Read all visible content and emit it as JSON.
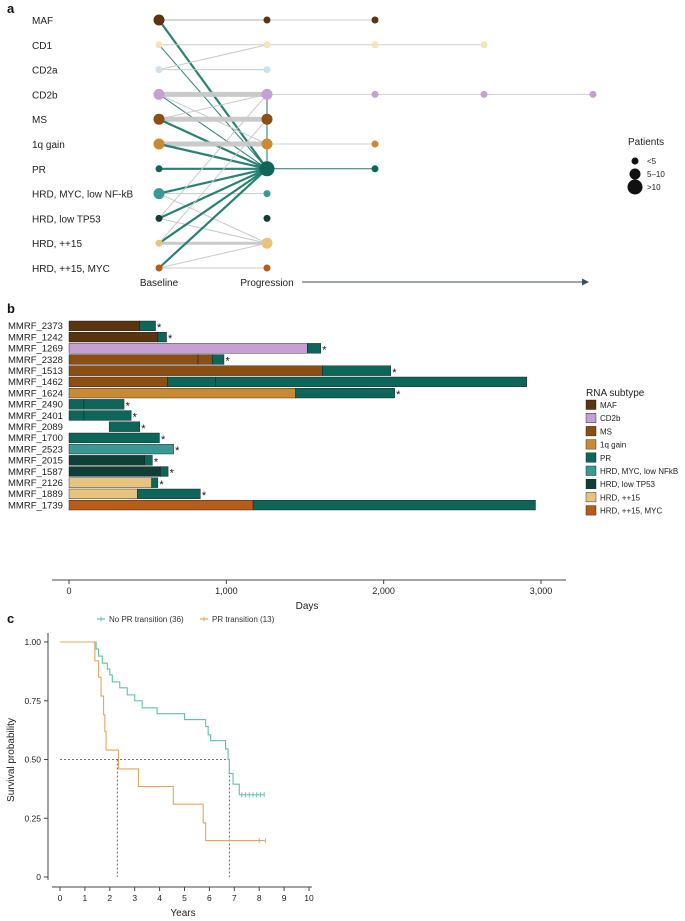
{
  "panels": {
    "a": "a",
    "b": "b",
    "c": "c"
  },
  "chart_data": [
    {
      "type": "network",
      "panel": "a",
      "rows": [
        "MAF",
        "CD1",
        "CD2a",
        "CD2b",
        "MS",
        "1q gain",
        "PR",
        "HRD, MYC, low NF-kB",
        "HRD, low TP53",
        "HRD, ++15",
        "HRD, ++15, MYC"
      ],
      "row_colors": [
        "#5b3410",
        "#f8e2b8",
        "#cfe0ef",
        "#c6a0d4",
        "#8c4f13",
        "#c98a35",
        "#0d6659",
        "#3a9a93",
        "#0f3f37",
        "#e6c47f",
        "#b85c1a"
      ],
      "stages": [
        "Baseline",
        "Progression"
      ],
      "baseline_sizes": [
        2,
        1,
        1,
        2,
        2,
        2,
        1,
        2,
        1,
        1,
        1
      ],
      "progression_sizes": [
        1,
        1,
        1,
        2,
        2,
        2,
        3,
        1,
        1,
        2,
        1
      ],
      "later_nodes": [
        {
          "row": 0,
          "step": 1
        },
        {
          "row": 1,
          "step": 1
        },
        {
          "row": 1,
          "step": 2
        },
        {
          "row": 3,
          "step": 1
        },
        {
          "row": 3,
          "step": 2
        },
        {
          "row": 3,
          "step": 3
        },
        {
          "row": 5,
          "step": 1
        },
        {
          "row": 6,
          "step": 1
        }
      ],
      "transitions": [
        {
          "from": 0,
          "to": 0,
          "w": 2
        },
        {
          "from": 0,
          "to": 6,
          "w": 2
        },
        {
          "from": 1,
          "to": 1,
          "w": 1
        },
        {
          "from": 1,
          "to": 6,
          "w": 1
        },
        {
          "from": 2,
          "to": 1,
          "w": 1
        },
        {
          "from": 2,
          "to": 2,
          "w": 1
        },
        {
          "from": 3,
          "to": 3,
          "w": 4
        },
        {
          "from": 3,
          "to": 6,
          "w": 1
        },
        {
          "from": 3,
          "to": 5,
          "w": 1
        },
        {
          "from": 4,
          "to": 4,
          "w": 4
        },
        {
          "from": 4,
          "to": 6,
          "w": 2
        },
        {
          "from": 4,
          "to": 3,
          "w": 1
        },
        {
          "from": 5,
          "to": 5,
          "w": 4
        },
        {
          "from": 5,
          "to": 6,
          "w": 2
        },
        {
          "from": 6,
          "to": 6,
          "w": 2
        },
        {
          "from": 7,
          "to": 6,
          "w": 2
        },
        {
          "from": 7,
          "to": 7,
          "w": 1
        },
        {
          "from": 7,
          "to": 9,
          "w": 1
        },
        {
          "from": 8,
          "to": 6,
          "w": 2
        },
        {
          "from": 8,
          "to": 9,
          "w": 1
        },
        {
          "from": 9,
          "to": 9,
          "w": 3
        },
        {
          "from": 9,
          "to": 6,
          "w": 2
        },
        {
          "from": 10,
          "to": 6,
          "w": 2
        },
        {
          "from": 10,
          "to": 9,
          "w": 1
        },
        {
          "from": 10,
          "to": 10,
          "w": 1
        },
        {
          "from": 8,
          "to": 3,
          "w": 1
        },
        {
          "from": 9,
          "to": 4,
          "w": 1
        }
      ],
      "later_transitions": [
        {
          "row": 0,
          "from_step": 0,
          "to_step": 1
        },
        {
          "row": 1,
          "from_step": 0,
          "to_step": 2
        },
        {
          "row": 3,
          "from_step": 0,
          "to_step": 3
        },
        {
          "row": 5,
          "from_step": 0,
          "to_step": 1
        },
        {
          "row": 6,
          "from_step": 0,
          "to_step": 1
        },
        {
          "row": 6,
          "from_step": 0,
          "to_step": 1,
          "to_row": 4
        },
        {
          "row": 6,
          "from_step": 0,
          "to_step": 1,
          "to_row": 3
        }
      ],
      "legend": {
        "title": "Patients",
        "labels": [
          "<5",
          "5–10",
          ">10"
        ]
      }
    },
    {
      "type": "bar",
      "panel": "b",
      "xlabel": "Days",
      "xlim": [
        0,
        3000
      ],
      "xticks": [
        0,
        1000,
        2000,
        3000
      ],
      "xtick_labels": [
        "0",
        "1,000",
        "2,000",
        "3,000"
      ],
      "legend_title": "RNA subtype",
      "subtypes": [
        "MAF",
        "CD2b",
        "MS",
        "1q gain",
        "PR",
        "HRD, MYC, low NFkB",
        "HRD, low TP53",
        "HRD, ++15",
        "HRD, ++15, MYC"
      ],
      "subtype_colors": [
        "#5b3410",
        "#c6a0d4",
        "#8c4f13",
        "#c98a35",
        "#0d6659",
        "#3a9a93",
        "#0f3f37",
        "#e6c47f",
        "#b85c1a"
      ],
      "patients": [
        {
          "id": "MMRF_2373",
          "star": "*",
          "segments": [
            {
              "s": 0,
              "e": 450,
              "t": 0
            },
            {
              "s": 450,
              "e": 550,
              "t": 4
            }
          ]
        },
        {
          "id": "MMRF_1242",
          "star": "*",
          "segments": [
            {
              "s": 0,
              "e": 565,
              "t": 0
            },
            {
              "s": 565,
              "e": 620,
              "t": 4
            }
          ]
        },
        {
          "id": "MMRF_1269",
          "star": "*",
          "segments": [
            {
              "s": 0,
              "e": 1515,
              "t": 1
            },
            {
              "s": 1515,
              "e": 1600,
              "t": 4
            }
          ]
        },
        {
          "id": "MMRF_2328",
          "star": "*",
          "segments": [
            {
              "s": 0,
              "e": 820,
              "t": 2
            },
            {
              "s": 820,
              "e": 910,
              "t": 2
            },
            {
              "s": 910,
              "e": 985,
              "t": 4
            }
          ]
        },
        {
          "id": "MMRF_1513",
          "star": "*",
          "segments": [
            {
              "s": 0,
              "e": 1610,
              "t": 2
            },
            {
              "s": 1610,
              "e": 2045,
              "t": 4
            }
          ]
        },
        {
          "id": "MMRF_1462",
          "star": "",
          "segments": [
            {
              "s": 0,
              "e": 625,
              "t": 2
            },
            {
              "s": 625,
              "e": 930,
              "t": 4
            },
            {
              "s": 930,
              "e": 2910,
              "t": 4
            }
          ]
        },
        {
          "id": "MMRF_1624",
          "star": "*",
          "segments": [
            {
              "s": 0,
              "e": 1440,
              "t": 3
            },
            {
              "s": 1440,
              "e": 2070,
              "t": 4
            }
          ]
        },
        {
          "id": "MMRF_2490",
          "star": "*",
          "segments": [
            {
              "s": 0,
              "e": 95,
              "t": 4
            },
            {
              "s": 95,
              "e": 350,
              "t": 4
            }
          ]
        },
        {
          "id": "MMRF_2401",
          "star": "*",
          "segments": [
            {
              "s": 0,
              "e": 95,
              "t": 4
            },
            {
              "s": 95,
              "e": 395,
              "t": 4
            }
          ]
        },
        {
          "id": "MMRF_2089",
          "star": "*",
          "segments": [
            {
              "s": 255,
              "e": 450,
              "t": 4
            }
          ]
        },
        {
          "id": "MMRF_1700",
          "star": "*",
          "segments": [
            {
              "s": 0,
              "e": 575,
              "t": 4
            }
          ]
        },
        {
          "id": "MMRF_2523",
          "star": "*",
          "segments": [
            {
              "s": 0,
              "e": 665,
              "t": 5
            }
          ]
        },
        {
          "id": "MMRF_2015",
          "star": "*",
          "segments": [
            {
              "s": 0,
              "e": 480,
              "t": 6
            },
            {
              "s": 480,
              "e": 530,
              "t": 4
            }
          ]
        },
        {
          "id": "MMRF_1587",
          "star": "*",
          "segments": [
            {
              "s": 0,
              "e": 580,
              "t": 6
            },
            {
              "s": 580,
              "e": 630,
              "t": 4
            }
          ]
        },
        {
          "id": "MMRF_2126",
          "star": "*",
          "segments": [
            {
              "s": 0,
              "e": 525,
              "t": 7
            },
            {
              "s": 525,
              "e": 565,
              "t": 4
            }
          ]
        },
        {
          "id": "MMRF_1889",
          "star": "*",
          "segments": [
            {
              "s": 0,
              "e": 435,
              "t": 7
            },
            {
              "s": 435,
              "e": 835,
              "t": 4
            }
          ]
        },
        {
          "id": "MMRF_1739",
          "star": "",
          "segments": [
            {
              "s": 0,
              "e": 1170,
              "t": 8
            },
            {
              "s": 1170,
              "e": 2965,
              "t": 4
            }
          ]
        }
      ]
    },
    {
      "type": "line",
      "panel": "c",
      "subtype": "kaplan-meier",
      "xlabel": "Years",
      "ylabel": "Survival probability",
      "xlim": [
        0,
        10
      ],
      "ylim": [
        0,
        1
      ],
      "xticks": [
        0,
        1,
        2,
        3,
        4,
        5,
        6,
        7,
        8,
        9,
        10
      ],
      "yticks": [
        0,
        0.25,
        0.5,
        0.75,
        1.0
      ],
      "ytick_labels": [
        "0",
        "0.25",
        "0.50",
        "0.75",
        "1.00"
      ],
      "median_line": 0.5,
      "series": [
        {
          "name": "No PR transition (36)",
          "color": "#5fbfb0",
          "steps": [
            [
              0,
              1.0
            ],
            [
              1.4,
              1.0
            ],
            [
              1.45,
              0.97
            ],
            [
              1.55,
              0.94
            ],
            [
              1.7,
              0.91
            ],
            [
              1.9,
              0.885
            ],
            [
              2.0,
              0.86
            ],
            [
              2.1,
              0.83
            ],
            [
              2.4,
              0.805
            ],
            [
              2.7,
              0.775
            ],
            [
              3.0,
              0.75
            ],
            [
              3.3,
              0.72
            ],
            [
              3.9,
              0.695
            ],
            [
              4.95,
              0.695
            ],
            [
              5.0,
              0.67
            ],
            [
              5.8,
              0.67
            ],
            [
              5.85,
              0.64
            ],
            [
              5.95,
              0.605
            ],
            [
              6.05,
              0.58
            ],
            [
              6.6,
              0.58
            ],
            [
              6.65,
              0.545
            ],
            [
              6.75,
              0.5
            ],
            [
              6.8,
              0.44
            ],
            [
              6.95,
              0.395
            ],
            [
              7.2,
              0.35
            ],
            [
              8.2,
              0.35
            ]
          ],
          "censor": [
            7.3,
            7.45,
            7.6,
            7.75,
            7.9,
            8.05,
            8.2
          ]
        },
        {
          "name": "PR transition (13)",
          "color": "#e8a55a",
          "steps": [
            [
              0,
              1.0
            ],
            [
              1.35,
              1.0
            ],
            [
              1.4,
              0.92
            ],
            [
              1.55,
              0.85
            ],
            [
              1.65,
              0.77
            ],
            [
              1.75,
              0.69
            ],
            [
              1.8,
              0.62
            ],
            [
              1.85,
              0.54
            ],
            [
              2.3,
              0.54
            ],
            [
              2.35,
              0.46
            ],
            [
              3.1,
              0.46
            ],
            [
              3.15,
              0.385
            ],
            [
              4.5,
              0.385
            ],
            [
              4.55,
              0.31
            ],
            [
              5.7,
              0.31
            ],
            [
              5.75,
              0.23
            ],
            [
              5.85,
              0.155
            ],
            [
              8.25,
              0.155
            ]
          ],
          "censor": [
            8.0,
            8.25
          ]
        }
      ],
      "medians": [
        6.8,
        2.3
      ]
    }
  ]
}
